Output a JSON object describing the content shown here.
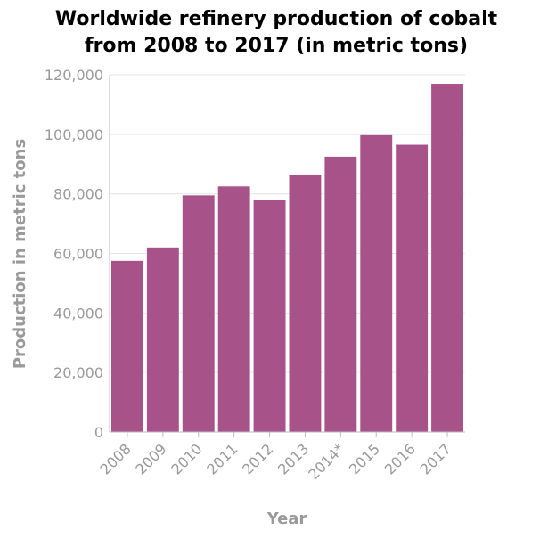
{
  "chart_data": {
    "type": "bar",
    "title_lines": [
      "Worldwide refinery production of cobalt",
      "from 2008 to 2017 (in metric tons)"
    ],
    "xlabel": "Year",
    "ylabel": "Production in metric tons",
    "categories": [
      "2008",
      "2009",
      "2010",
      "2011",
      "2012",
      "2013",
      "2014*",
      "2015",
      "2016",
      "2017"
    ],
    "values": [
      57500,
      62000,
      79500,
      82500,
      78000,
      86500,
      92500,
      100000,
      96500,
      117000
    ],
    "ylim": [
      0,
      120000
    ],
    "yticks": [
      0,
      20000,
      40000,
      60000,
      80000,
      100000,
      120000
    ],
    "ytick_labels": [
      "0",
      "20,000",
      "40,000",
      "60,000",
      "80,000",
      "100,000",
      "120,000"
    ],
    "grid": true,
    "legend": false,
    "bar_color": "#a8528a"
  }
}
